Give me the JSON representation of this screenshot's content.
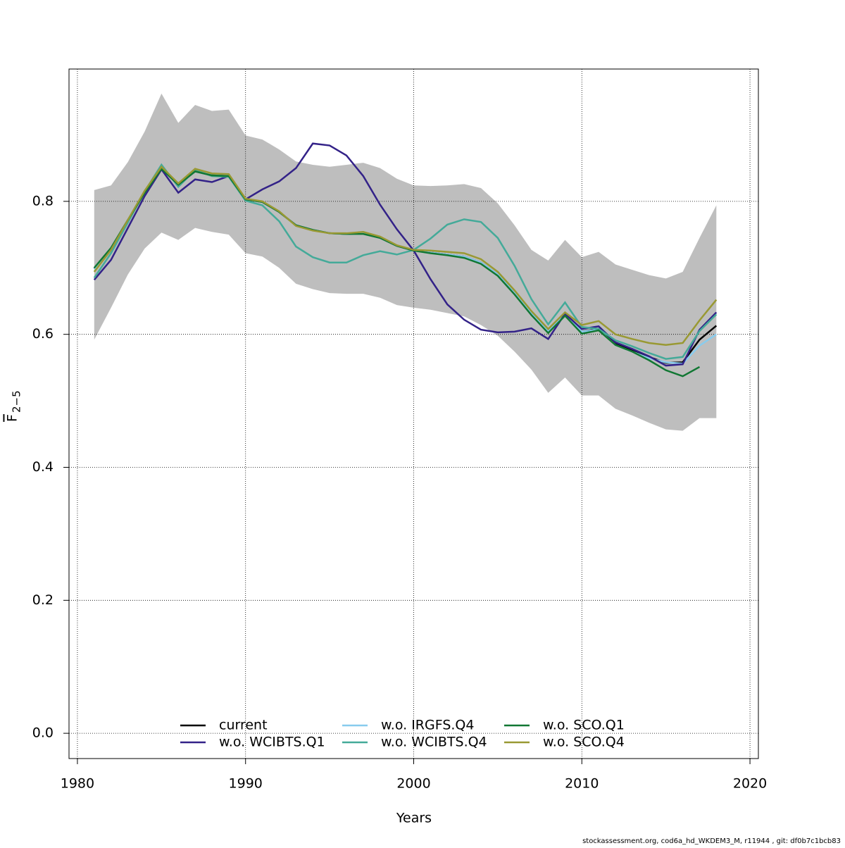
{
  "chart_data": {
    "type": "line",
    "xlabel": "Years",
    "ylabel": "F",
    "ylabel_sub": "2−5",
    "footnote": "stockassessment.org, cod6a_hd_WKDEM3_M, r11944 , git: df0b7c1bcb83",
    "x": [
      1981,
      1982,
      1983,
      1984,
      1985,
      1986,
      1987,
      1988,
      1989,
      1990,
      1991,
      1992,
      1993,
      1994,
      1995,
      1996,
      1997,
      1998,
      1999,
      2000,
      2001,
      2002,
      2003,
      2004,
      2005,
      2006,
      2007,
      2008,
      2009,
      2010,
      2011,
      2012,
      2013,
      2014,
      2015,
      2016,
      2017,
      2018
    ],
    "band": {
      "color": "#bebebe",
      "upper": [
        0.817,
        0.824,
        0.859,
        0.905,
        0.962,
        0.918,
        0.945,
        0.936,
        0.938,
        0.899,
        0.893,
        0.878,
        0.86,
        0.855,
        0.852,
        0.855,
        0.858,
        0.85,
        0.834,
        0.824,
        0.823,
        0.824,
        0.826,
        0.82,
        0.797,
        0.764,
        0.727,
        0.711,
        0.742,
        0.716,
        0.724,
        0.705,
        0.697,
        0.689,
        0.684,
        0.694,
        0.745,
        0.794
      ],
      "lower": [
        0.592,
        0.64,
        0.69,
        0.729,
        0.753,
        0.742,
        0.76,
        0.754,
        0.75,
        0.722,
        0.717,
        0.7,
        0.676,
        0.668,
        0.662,
        0.661,
        0.661,
        0.655,
        0.644,
        0.64,
        0.637,
        0.632,
        0.627,
        0.614,
        0.598,
        0.574,
        0.547,
        0.512,
        0.535,
        0.508,
        0.508,
        0.488,
        0.478,
        0.467,
        0.457,
        0.455,
        0.474,
        0.474
      ]
    },
    "series": [
      {
        "name": "current",
        "color": "#000000",
        "values": [
          0.699,
          0.729,
          0.771,
          0.813,
          0.849,
          0.825,
          0.845,
          0.839,
          0.838,
          0.803,
          0.799,
          0.784,
          0.764,
          0.757,
          0.752,
          0.751,
          0.752,
          0.745,
          0.733,
          0.726,
          0.723,
          0.72,
          0.717,
          0.708,
          0.69,
          0.662,
          0.631,
          0.604,
          0.63,
          0.604,
          0.608,
          0.586,
          0.576,
          0.566,
          0.557,
          0.558,
          0.592,
          0.613
        ]
      },
      {
        "name": "w.o. WCIBTS.Q1",
        "color": "#332288",
        "values": [
          0.682,
          0.712,
          0.76,
          0.808,
          0.848,
          0.813,
          0.833,
          0.829,
          0.838,
          0.803,
          0.818,
          0.83,
          0.85,
          0.887,
          0.884,
          0.869,
          0.838,
          0.795,
          0.758,
          0.726,
          0.683,
          0.645,
          0.622,
          0.607,
          0.603,
          0.604,
          0.609,
          0.593,
          0.631,
          0.608,
          0.612,
          0.588,
          0.578,
          0.567,
          0.553,
          0.555,
          0.607,
          0.633
        ]
      },
      {
        "name": "w.o. IRGFS.Q4",
        "color": "#88ccee",
        "values": [
          0.698,
          0.728,
          0.771,
          0.813,
          0.849,
          0.825,
          0.845,
          0.839,
          0.838,
          0.803,
          0.799,
          0.784,
          0.764,
          0.757,
          0.752,
          0.751,
          0.752,
          0.745,
          0.733,
          0.726,
          0.723,
          0.72,
          0.717,
          0.708,
          0.69,
          0.662,
          0.631,
          0.604,
          0.63,
          0.604,
          0.607,
          0.584,
          0.574,
          0.564,
          0.558,
          0.556,
          0.583,
          0.6
        ]
      },
      {
        "name": "w.o. WCIBTS.Q4",
        "color": "#44aa99",
        "values": [
          0.685,
          0.722,
          0.768,
          0.815,
          0.855,
          0.822,
          0.847,
          0.838,
          0.837,
          0.801,
          0.794,
          0.77,
          0.732,
          0.716,
          0.708,
          0.708,
          0.719,
          0.725,
          0.72,
          0.727,
          0.744,
          0.765,
          0.773,
          0.769,
          0.745,
          0.703,
          0.653,
          0.615,
          0.648,
          0.611,
          0.608,
          0.591,
          0.582,
          0.572,
          0.563,
          0.566,
          0.605,
          0.63
        ]
      },
      {
        "name": "w.o. SCO.Q1",
        "color": "#117733",
        "values": [
          0.7,
          0.73,
          0.772,
          0.813,
          0.849,
          0.825,
          0.845,
          0.839,
          0.838,
          0.803,
          0.799,
          0.784,
          0.764,
          0.757,
          0.752,
          0.751,
          0.751,
          0.745,
          0.733,
          0.726,
          0.722,
          0.719,
          0.715,
          0.706,
          0.688,
          0.66,
          0.629,
          0.602,
          0.628,
          0.601,
          0.606,
          0.584,
          0.574,
          0.561,
          0.546,
          0.537,
          0.551,
          null
        ]
      },
      {
        "name": "w.o. SCO.Q4",
        "color": "#999933",
        "values": [
          0.694,
          0.727,
          0.772,
          0.816,
          0.852,
          0.827,
          0.849,
          0.842,
          0.841,
          0.804,
          0.8,
          0.785,
          0.763,
          0.756,
          0.752,
          0.752,
          0.754,
          0.747,
          0.734,
          0.727,
          0.726,
          0.724,
          0.722,
          0.713,
          0.694,
          0.666,
          0.635,
          0.608,
          0.633,
          0.614,
          0.62,
          0.6,
          0.593,
          0.587,
          0.584,
          0.587,
          0.621,
          0.652
        ]
      }
    ],
    "xlim": [
      1979.5,
      2020.5
    ],
    "xticks": [
      1980,
      1990,
      2000,
      2010,
      2020
    ],
    "ylim": [
      -0.038,
      0.999
    ],
    "yticks": [
      {
        "value": 0,
        "label": "0.0"
      },
      0.2,
      0.4,
      0.6,
      0.8
    ],
    "grid": true,
    "legend": "bottom"
  }
}
